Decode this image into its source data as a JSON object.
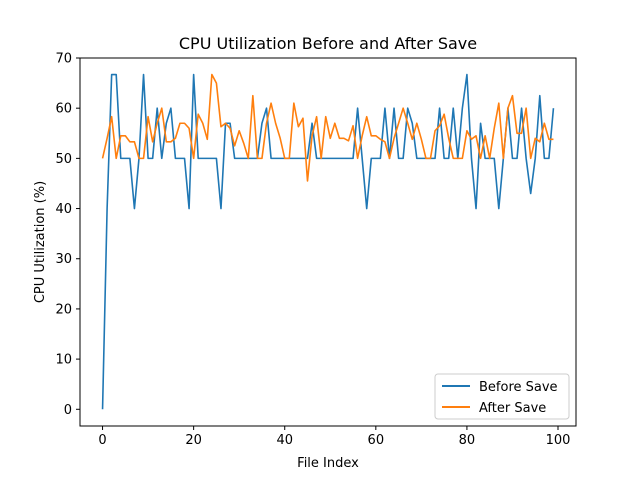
{
  "chart_data": {
    "type": "line",
    "title": "CPU Utilization Before and After Save",
    "xlabel": "File Index",
    "ylabel": "CPU Utilization (%)",
    "xlim": [
      -4.95,
      103.95
    ],
    "ylim": [
      -3.33,
      70
    ],
    "xticks": [
      0,
      20,
      40,
      60,
      80,
      100
    ],
    "yticks": [
      0,
      10,
      20,
      30,
      40,
      50,
      60,
      70
    ],
    "grid": false,
    "legend_position": "lower right",
    "x": [
      0,
      1,
      2,
      3,
      4,
      5,
      6,
      7,
      8,
      9,
      10,
      11,
      12,
      13,
      14,
      15,
      16,
      17,
      18,
      19,
      20,
      21,
      22,
      23,
      24,
      25,
      26,
      27,
      28,
      29,
      30,
      31,
      32,
      33,
      34,
      35,
      36,
      37,
      38,
      39,
      40,
      41,
      42,
      43,
      44,
      45,
      46,
      47,
      48,
      49,
      50,
      51,
      52,
      53,
      54,
      55,
      56,
      57,
      58,
      59,
      60,
      61,
      62,
      63,
      64,
      65,
      66,
      67,
      68,
      69,
      70,
      71,
      72,
      73,
      74,
      75,
      76,
      77,
      78,
      79,
      80,
      81,
      82,
      83,
      84,
      85,
      86,
      87,
      88,
      89,
      90,
      91,
      92,
      93,
      94,
      95,
      96,
      97,
      98,
      99
    ],
    "series": [
      {
        "name": "Before Save",
        "color": "#1f77b4",
        "values": [
          0,
          40,
          66.7,
          66.7,
          50,
          50,
          50,
          40,
          50,
          66.7,
          50,
          50,
          60,
          50,
          57,
          60,
          50,
          50,
          50,
          40,
          66.7,
          50,
          50,
          50,
          50,
          50,
          40,
          57,
          57,
          50,
          50,
          50,
          50,
          50,
          50,
          57,
          60,
          50,
          50,
          50,
          50,
          50,
          50,
          50,
          50,
          50,
          57,
          50,
          50,
          50,
          50,
          50,
          50,
          50,
          50,
          50,
          60,
          50,
          40,
          50,
          50,
          50,
          60,
          50,
          60,
          50,
          50,
          60,
          57,
          50,
          50,
          50,
          50,
          50,
          60,
          50,
          50,
          60,
          50,
          60,
          66.7,
          50,
          40,
          57,
          50,
          50,
          50,
          40,
          50,
          60,
          50,
          50,
          60,
          50,
          43,
          50,
          62.5,
          50,
          50,
          60
        ]
      },
      {
        "name": "After Save",
        "color": "#ff7f0e",
        "values": [
          50,
          54,
          58.3,
          50,
          54.5,
          54.5,
          53.3,
          53.3,
          50,
          50,
          58.3,
          53.3,
          57,
          60,
          53.3,
          53.3,
          54,
          57,
          57,
          56,
          50,
          58.8,
          57,
          53.8,
          66.7,
          65,
          56.3,
          57,
          56,
          52.5,
          55.5,
          53,
          50,
          62.5,
          50,
          50,
          57,
          61,
          57,
          54,
          50,
          50,
          61,
          56.3,
          58,
          45.5,
          54.5,
          58.3,
          50,
          58.3,
          54,
          57,
          54,
          54,
          53.5,
          56.5,
          50,
          54.5,
          58.3,
          54.5,
          54.5,
          53.8,
          53.3,
          50,
          54,
          57,
          60,
          57,
          53.8,
          57,
          53.8,
          50,
          50,
          55.5,
          56.5,
          58.8,
          54,
          50,
          50,
          50,
          55.5,
          53.8,
          54.5,
          50,
          54.5,
          50,
          56,
          61,
          50,
          60,
          62.5,
          55,
          55,
          60,
          50,
          54,
          53.3,
          57,
          53.8,
          53.8
        ]
      }
    ]
  }
}
